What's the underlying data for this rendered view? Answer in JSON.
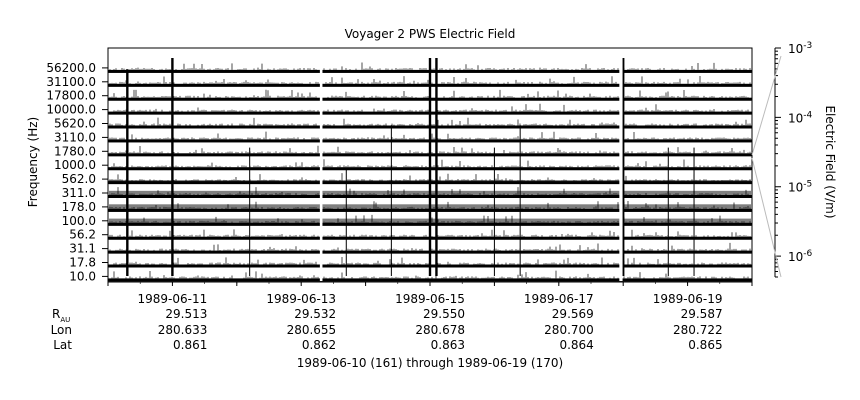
{
  "chart_data": {
    "type": "heatmap",
    "title": "Voyager 2 PWS Electric Field",
    "ylabel": "Frequency (Hz)",
    "colorbar_label": "Electric Field (V/m)",
    "colorbar_scale": "log",
    "colorbar_range": [
      5e-07,
      0.001
    ],
    "colorbar_ticks": [
      {
        "value": 0.001,
        "mantissa": "10",
        "exponent": "-3"
      },
      {
        "value": 0.0001,
        "mantissa": "10",
        "exponent": "-4"
      },
      {
        "value": 1e-05,
        "mantissa": "10",
        "exponent": "-5"
      },
      {
        "value": 1e-06,
        "mantissa": "10",
        "exponent": "-6"
      }
    ],
    "channels": [
      "10.0",
      "17.8",
      "31.1",
      "56.2",
      "100.0",
      "178.0",
      "311.0",
      "562.0",
      "1000.0",
      "1780.0",
      "3110.0",
      "5620.0",
      "10000.0",
      "17800.0",
      "31100.0",
      "56200.0"
    ],
    "channel_baseline_fraction": [
      0.35,
      0.25,
      0.25,
      0.3,
      0.9,
      0.95,
      0.9,
      0.5,
      0.3,
      0.35,
      0.35,
      0.25,
      0.2,
      0.15,
      0.15,
      0.15
    ],
    "x_range_days": [
      0,
      10
    ],
    "x_start_date": "1989-06-10",
    "x_tick_labels": [
      "1989-06-11",
      "1989-06-13",
      "1989-06-15",
      "1989-06-17",
      "1989-06-19"
    ],
    "x_tick_days": [
      1,
      3,
      5,
      7,
      9
    ],
    "data_gaps_days": [
      [
        3.29,
        3.33
      ],
      [
        7.94,
        7.99
      ]
    ],
    "bursts": [
      {
        "day": 0.3,
        "level": 0.95
      },
      {
        "day": 1.0,
        "level": 1.0
      },
      {
        "day": 5.0,
        "level": 1.0
      },
      {
        "day": 5.1,
        "level": 1.0
      },
      {
        "day": 8.0,
        "level": 1.0
      },
      {
        "day": 2.2,
        "level": 0.6
      },
      {
        "day": 3.7,
        "level": 0.5
      },
      {
        "day": 4.4,
        "level": 0.7
      },
      {
        "day": 6.0,
        "level": 0.6
      },
      {
        "day": 6.4,
        "level": 0.7
      },
      {
        "day": 8.7,
        "level": 0.6
      },
      {
        "day": 9.1,
        "level": 0.6
      }
    ],
    "ephemeris": {
      "row_labels": {
        "r_main": "R",
        "r_sub": "AU",
        "lon": "Lon",
        "lat": "Lat"
      },
      "R_AU": [
        "29.513",
        "29.532",
        "29.550",
        "29.569",
        "29.587"
      ],
      "Lon": [
        "280.633",
        "280.655",
        "280.678",
        "280.700",
        "280.722"
      ],
      "Lat": [
        "0.861",
        "0.862",
        "0.863",
        "0.864",
        "0.865"
      ]
    },
    "date_range_label": "1989-06-10 (161) through 1989-06-19 (170)",
    "colors": {
      "trace": "#000000",
      "fill": "#7f7f7f",
      "background": "#ffffff"
    }
  }
}
